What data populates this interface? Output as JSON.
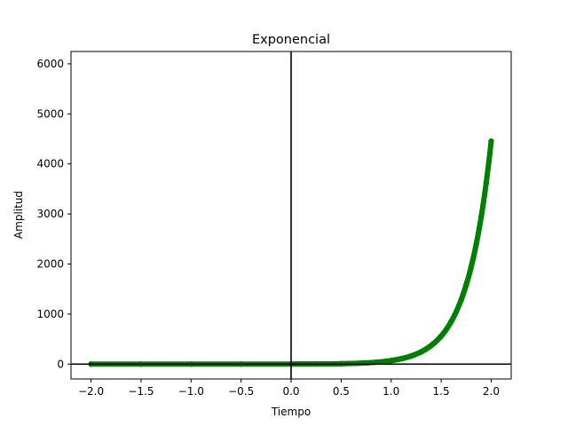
{
  "chart_data": {
    "type": "scatter",
    "title": "Exponencial",
    "xlabel": "Tiempo",
    "ylabel": "Amplitud",
    "xlim": [
      -2.2,
      2.2
    ],
    "ylim": [
      -297,
      6247
    ],
    "xticks": [
      -2.0,
      -1.5,
      -1.0,
      -0.5,
      0.0,
      0.5,
      1.0,
      1.5,
      2.0
    ],
    "xtick_labels": [
      "−2.0",
      "−1.5",
      "−1.0",
      "−0.5",
      "0.0",
      "0.5",
      "1.0",
      "1.5",
      "2.0"
    ],
    "yticks": [
      0,
      1000,
      2000,
      3000,
      4000,
      5000,
      6000
    ],
    "ytick_labels": [
      "0",
      "1000",
      "2000",
      "3000",
      "4000",
      "5000",
      "6000"
    ],
    "reference_lines": {
      "x": 0,
      "y": 0
    },
    "grid": false,
    "series": [
      {
        "color": "#008000",
        "x": [
          -2.0,
          -1.5,
          -1.0,
          -0.5,
          0.0,
          0.25,
          0.5,
          0.75,
          1.0,
          1.1,
          1.2,
          1.3,
          1.4,
          1.5,
          1.6,
          1.7,
          1.75,
          1.8,
          1.85,
          1.9,
          1.95,
          2.0
        ],
        "values": [
          0,
          0,
          0,
          0,
          1,
          3,
          8,
          24,
          70,
          107,
          162,
          245,
          371,
          560,
          849,
          1284,
          1580,
          1944,
          2391,
          2941,
          3620,
          4453
        ]
      }
    ]
  }
}
